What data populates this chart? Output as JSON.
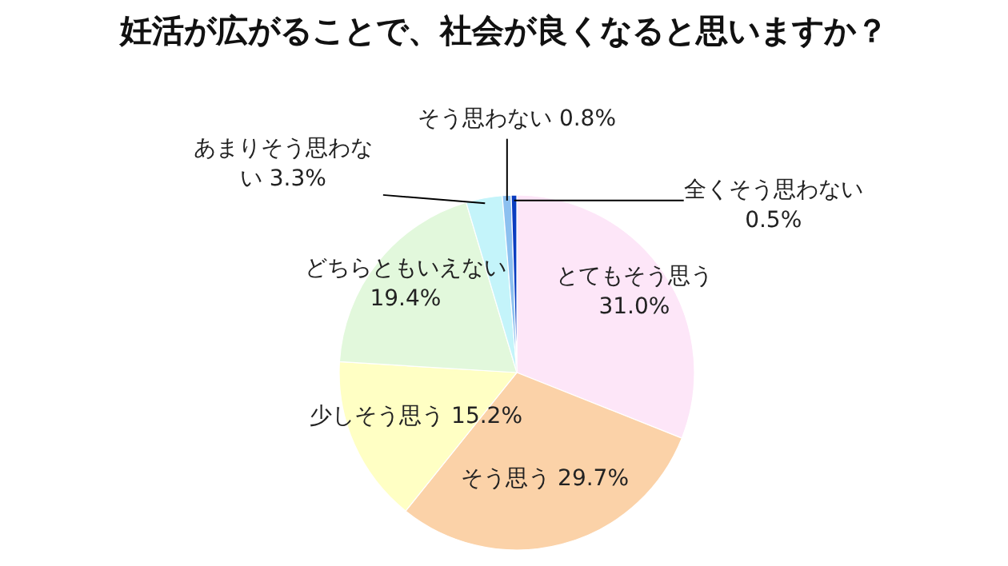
{
  "chart_data": {
    "type": "pie",
    "title": "妊活が広がることで、社会が良くなると思いますか？",
    "categories": [
      "とてもそう思う",
      "そう思う",
      "少しそう思う",
      "どちらともいえない",
      "あまりそう思わない",
      "そう思わない",
      "全くそう思わない"
    ],
    "values": [
      31.0,
      29.7,
      15.2,
      19.4,
      3.3,
      0.8,
      0.5
    ],
    "colors": [
      "#fde6f8",
      "#fbd2a8",
      "#ffffc4",
      "#e2f8dc",
      "#c4f4fa",
      "#8cc0f0",
      "#0a3cc0"
    ],
    "value_labels": [
      "31.0%",
      "29.7%",
      "15.2%",
      "19.4%",
      "3.3%",
      "0.8%",
      "0.5%"
    ]
  }
}
